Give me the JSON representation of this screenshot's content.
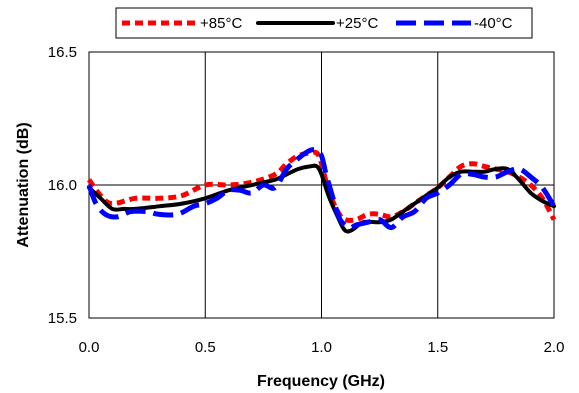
{
  "chart_data": {
    "type": "line",
    "title": "",
    "xlabel": "Frequency (GHz)",
    "ylabel": "Attenuation (dB)",
    "xlim": [
      0.0,
      2.0
    ],
    "ylim": [
      15.5,
      16.5
    ],
    "x_ticks": [
      "0.0",
      "0.5",
      "1.0",
      "1.5",
      "2.0"
    ],
    "y_ticks": [
      "15.5",
      "16.0",
      "16.5"
    ],
    "grid": "vertical and horizontal major gridlines",
    "legend_position": "top",
    "series": [
      {
        "name": "+85°C",
        "color": "#ff0000",
        "style": "dotted",
        "x": [
          0.0,
          0.05,
          0.1,
          0.2,
          0.3,
          0.4,
          0.5,
          0.6,
          0.7,
          0.8,
          0.85,
          0.9,
          0.95,
          0.98,
          1.0,
          1.03,
          1.07,
          1.1,
          1.15,
          1.2,
          1.25,
          1.3,
          1.35,
          1.4,
          1.45,
          1.5,
          1.55,
          1.6,
          1.65,
          1.7,
          1.75,
          1.8,
          1.85,
          1.9,
          1.95,
          2.0
        ],
        "values": [
          16.02,
          15.96,
          15.93,
          15.95,
          15.95,
          15.96,
          16.0,
          16.0,
          16.01,
          16.04,
          16.08,
          16.11,
          16.12,
          16.12,
          16.08,
          15.98,
          15.9,
          15.87,
          15.87,
          15.89,
          15.89,
          15.88,
          15.9,
          15.93,
          15.96,
          15.99,
          16.03,
          16.07,
          16.08,
          16.07,
          16.06,
          16.05,
          16.03,
          16.0,
          15.95,
          15.87
        ]
      },
      {
        "name": "+25°C",
        "color": "#000000",
        "style": "solid",
        "x": [
          0.0,
          0.05,
          0.1,
          0.15,
          0.2,
          0.3,
          0.4,
          0.5,
          0.6,
          0.7,
          0.8,
          0.85,
          0.9,
          0.95,
          0.98,
          1.0,
          1.03,
          1.07,
          1.1,
          1.13,
          1.18,
          1.25,
          1.3,
          1.35,
          1.4,
          1.45,
          1.5,
          1.55,
          1.6,
          1.65,
          1.7,
          1.75,
          1.8,
          1.85,
          1.9,
          1.95,
          2.0
        ],
        "values": [
          15.99,
          15.95,
          15.91,
          15.91,
          15.91,
          15.92,
          15.93,
          15.95,
          15.98,
          16.0,
          16.02,
          16.04,
          16.06,
          16.07,
          16.07,
          16.04,
          15.96,
          15.88,
          15.83,
          15.83,
          15.86,
          15.86,
          15.87,
          15.9,
          15.93,
          15.96,
          15.99,
          16.03,
          16.05,
          16.05,
          16.05,
          16.06,
          16.06,
          16.02,
          15.97,
          15.94,
          15.92
        ]
      },
      {
        "name": "-40°C",
        "color": "#0000ff",
        "style": "dashed",
        "x": [
          0.0,
          0.03,
          0.07,
          0.12,
          0.18,
          0.25,
          0.3,
          0.38,
          0.45,
          0.5,
          0.55,
          0.6,
          0.65,
          0.7,
          0.75,
          0.8,
          0.85,
          0.9,
          0.95,
          0.98,
          1.0,
          1.02,
          1.05,
          1.08,
          1.12,
          1.15,
          1.2,
          1.25,
          1.3,
          1.35,
          1.4,
          1.45,
          1.5,
          1.55,
          1.6,
          1.65,
          1.7,
          1.75,
          1.8,
          1.85,
          1.9,
          1.95,
          2.0
        ],
        "values": [
          16.0,
          15.93,
          15.89,
          15.88,
          15.9,
          15.9,
          15.89,
          15.89,
          15.92,
          15.93,
          15.95,
          15.98,
          15.98,
          15.97,
          16.0,
          15.99,
          16.06,
          16.1,
          16.13,
          16.13,
          16.11,
          16.04,
          15.95,
          15.87,
          15.84,
          15.85,
          15.86,
          15.87,
          15.84,
          15.88,
          15.9,
          15.95,
          15.97,
          16.0,
          16.04,
          16.04,
          16.03,
          16.03,
          16.05,
          16.06,
          16.03,
          15.99,
          15.92
        ]
      }
    ]
  }
}
